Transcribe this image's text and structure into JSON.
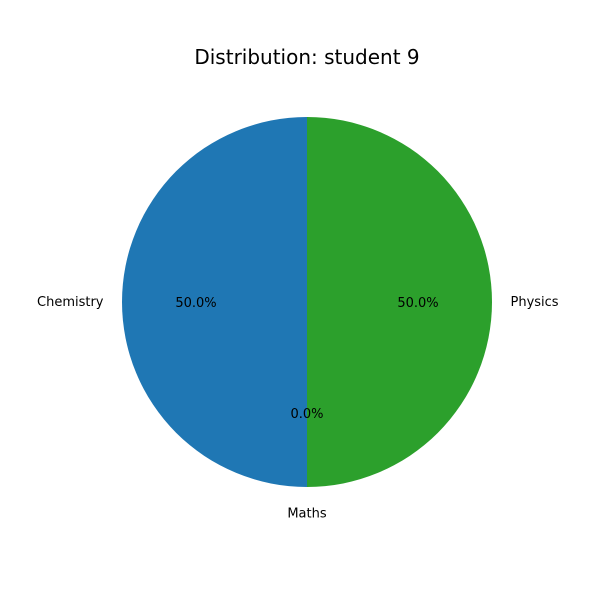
{
  "chart_data": {
    "type": "pie",
    "title": "Distribution: student 9",
    "categories": [
      "Chemistry",
      "Maths",
      "Physics"
    ],
    "values": [
      50.0,
      0.0,
      50.0
    ],
    "percent_labels": [
      "50.0%",
      "0.0%",
      "50.0%"
    ],
    "colors": [
      "#1f77b4",
      "#ff7f0e",
      "#2ca02c"
    ],
    "start_angle_deg": 90,
    "direction": "counterclockwise",
    "legend": "none"
  }
}
